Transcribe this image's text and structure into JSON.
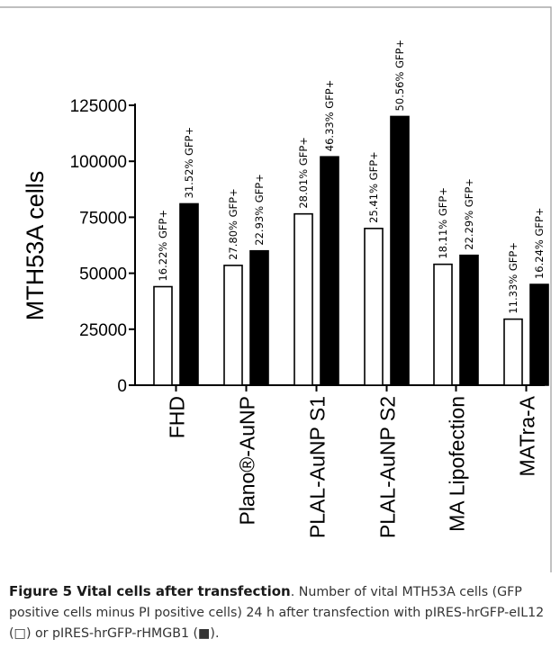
{
  "chart_data": {
    "type": "bar",
    "ylabel": "MTH53A cells",
    "xlabel": "",
    "ylim": [
      0,
      125000
    ],
    "yticks": [
      0,
      25000,
      50000,
      75000,
      100000,
      125000
    ],
    "categories": [
      "FHD",
      "Plano®-AuNP",
      "PLAL-AuNP S1",
      "PLAL-AuNP S2",
      "MA Lipofection",
      "MATra-A"
    ],
    "series": [
      {
        "name": "pIRES-hrGFP-eIL12",
        "color": "#ffffff",
        "values": [
          44000,
          53500,
          76500,
          70000,
          54000,
          29500
        ],
        "labels": [
          "16.22% GFP+",
          "27.80% GFP+",
          "28.01% GFP+",
          "25.41% GFP+",
          "18.11% GFP+",
          "11.33% GFP+"
        ]
      },
      {
        "name": "pIRES-hrGFP-rHMGB1",
        "color": "#000000",
        "values": [
          81000,
          60000,
          102000,
          120000,
          58000,
          45000
        ],
        "labels": [
          "31.52% GFP+",
          "22.93% GFP+",
          "46.33% GFP+",
          "50.56% GFP+",
          "22.29% GFP+",
          "16.24% GFP+"
        ]
      }
    ],
    "grid": false,
    "legend": "none"
  },
  "caption": {
    "title": "Figure 5 Vital cells after transfection",
    "text": ". Number of vital MTH53A cells (GFP positive cells minus PI positive cells) 24 h after transfection with pIRES-hrGFP-eIL12 (□) or pIRES-hrGFP-rHMGB1 (■)."
  },
  "colors": {
    "frame": "#999999",
    "axis": "#000000",
    "caption_text": "#333333"
  }
}
